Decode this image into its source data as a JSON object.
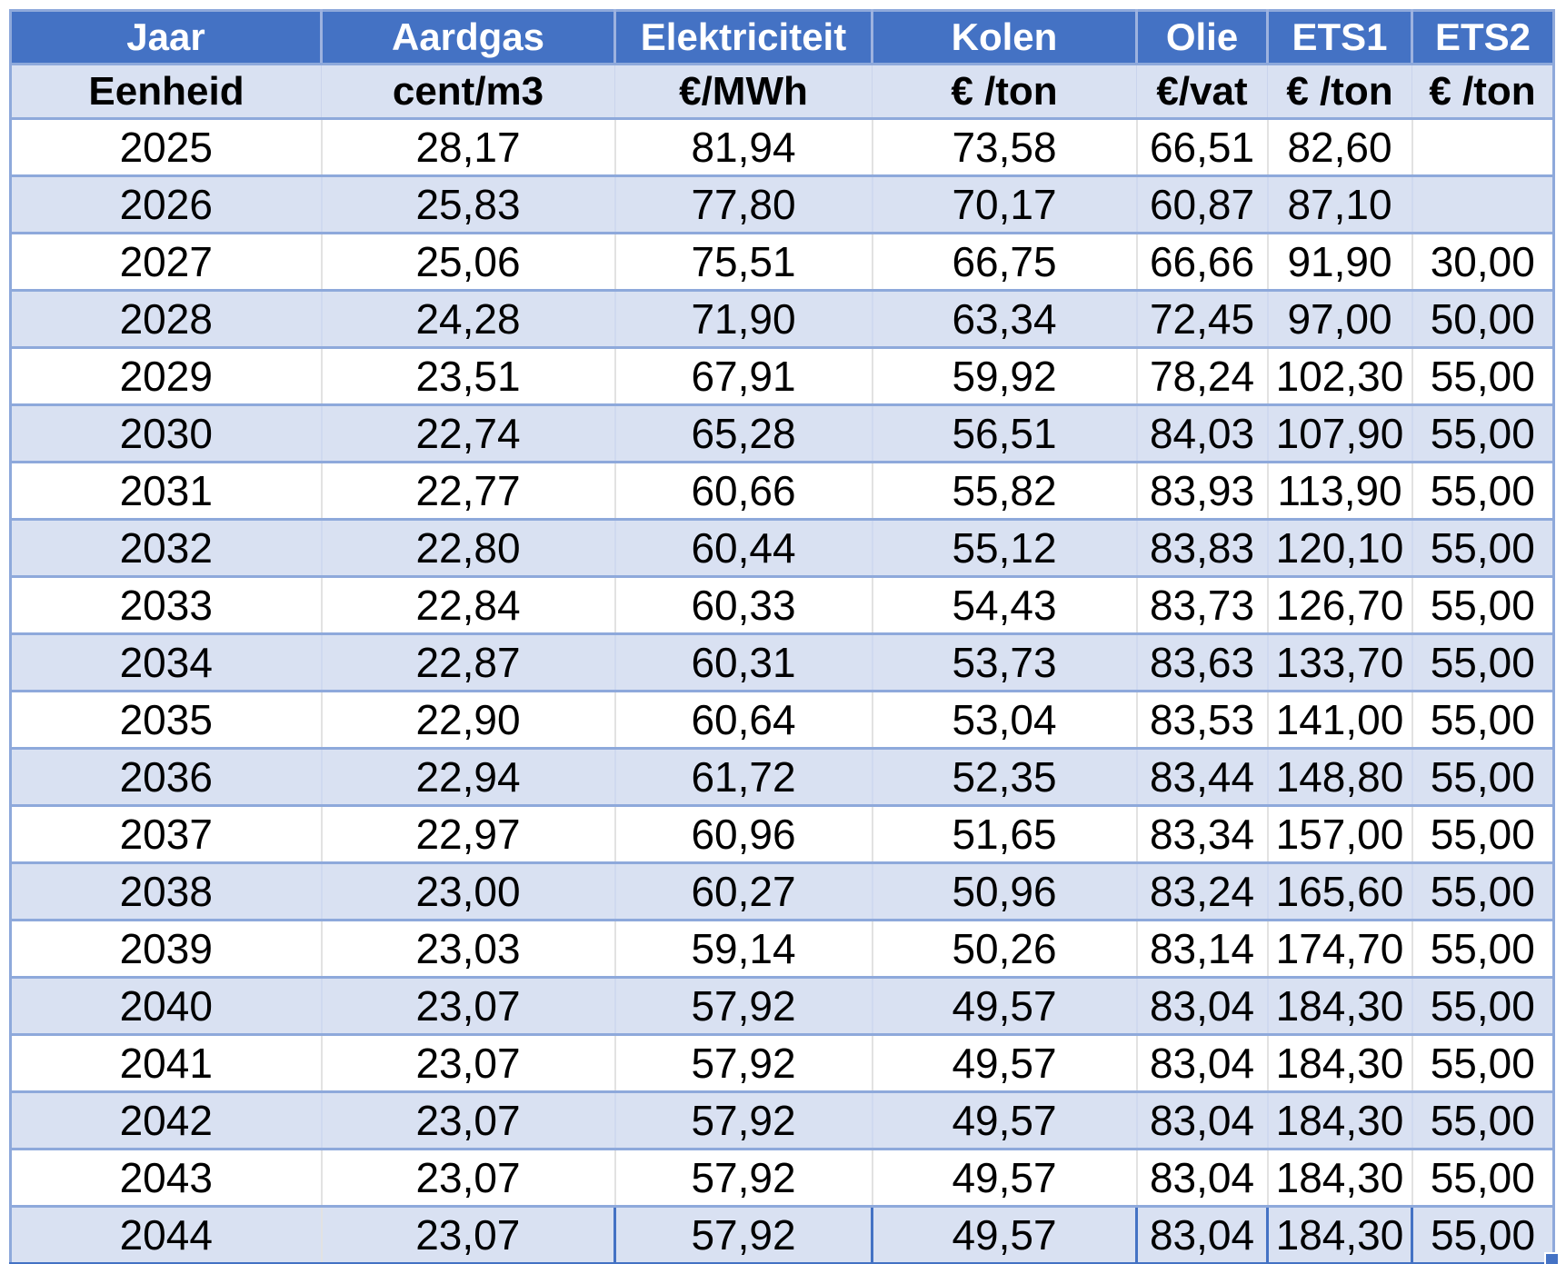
{
  "app": "spreadsheet-price-table",
  "theme": {
    "header_bg": "#4472C4",
    "header_text": "#FFFFFF",
    "band_row_bg": "#D9E1F2",
    "white_row_bg": "#FFFFFF",
    "row_border": "#8EA9DB",
    "selection_border": "#4472C4"
  },
  "table": {
    "header": [
      "Jaar",
      "Aardgas",
      "Elektriciteit",
      "Kolen",
      "Olie",
      "ETS1",
      "ETS2"
    ],
    "units": [
      "Eenheid",
      "cent/m3",
      "€/MWh",
      "€ /ton",
      "€/vat",
      "€ /ton",
      "€ /ton"
    ],
    "rows": [
      [
        "2025",
        "28,17",
        "81,94",
        "73,58",
        "66,51",
        "82,60",
        ""
      ],
      [
        "2026",
        "25,83",
        "77,80",
        "70,17",
        "60,87",
        "87,10",
        ""
      ],
      [
        "2027",
        "25,06",
        "75,51",
        "66,75",
        "66,66",
        "91,90",
        "30,00"
      ],
      [
        "2028",
        "24,28",
        "71,90",
        "63,34",
        "72,45",
        "97,00",
        "50,00"
      ],
      [
        "2029",
        "23,51",
        "67,91",
        "59,92",
        "78,24",
        "102,30",
        "55,00"
      ],
      [
        "2030",
        "22,74",
        "65,28",
        "56,51",
        "84,03",
        "107,90",
        "55,00"
      ],
      [
        "2031",
        "22,77",
        "60,66",
        "55,82",
        "83,93",
        "113,90",
        "55,00"
      ],
      [
        "2032",
        "22,80",
        "60,44",
        "55,12",
        "83,83",
        "120,10",
        "55,00"
      ],
      [
        "2033",
        "22,84",
        "60,33",
        "54,43",
        "83,73",
        "126,70",
        "55,00"
      ],
      [
        "2034",
        "22,87",
        "60,31",
        "53,73",
        "83,63",
        "133,70",
        "55,00"
      ],
      [
        "2035",
        "22,90",
        "60,64",
        "53,04",
        "83,53",
        "141,00",
        "55,00"
      ],
      [
        "2036",
        "22,94",
        "61,72",
        "52,35",
        "83,44",
        "148,80",
        "55,00"
      ],
      [
        "2037",
        "22,97",
        "60,96",
        "51,65",
        "83,34",
        "157,00",
        "55,00"
      ],
      [
        "2038",
        "23,00",
        "60,27",
        "50,96",
        "83,24",
        "165,60",
        "55,00"
      ],
      [
        "2039",
        "23,03",
        "59,14",
        "50,26",
        "83,14",
        "174,70",
        "55,00"
      ],
      [
        "2040",
        "23,07",
        "57,92",
        "49,57",
        "83,04",
        "184,30",
        "55,00"
      ],
      [
        "2041",
        "23,07",
        "57,92",
        "49,57",
        "83,04",
        "184,30",
        "55,00"
      ],
      [
        "2042",
        "23,07",
        "57,92",
        "49,57",
        "83,04",
        "184,30",
        "55,00"
      ],
      [
        "2043",
        "23,07",
        "57,92",
        "49,57",
        "83,04",
        "184,30",
        "55,00"
      ],
      [
        "2044",
        "23,07",
        "57,92",
        "49,57",
        "83,04",
        "184,30",
        "55,00"
      ]
    ],
    "selected_row_index": 19
  }
}
